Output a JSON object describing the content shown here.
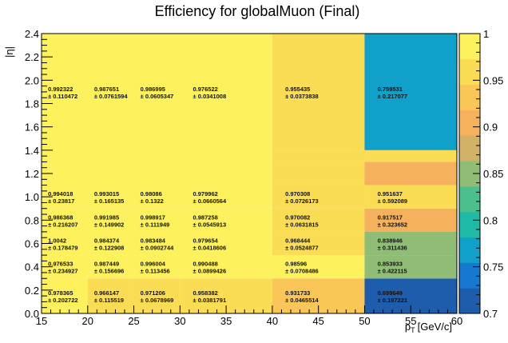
{
  "chart_data": {
    "type": "heatmap",
    "title": "Efficiency for globalMuon (Final)",
    "xlabel_main": "p",
    "xlabel_sub": "T",
    "xlabel_unit": "[GeV/c]",
    "ylabel": "|η|",
    "x_edges": [
      15,
      20,
      25,
      30,
      40,
      50,
      60
    ],
    "y_edges": [
      0.0,
      0.3,
      0.5,
      0.7,
      0.9,
      1.1,
      1.3,
      1.4,
      2.4
    ],
    "xlim": [
      15,
      60
    ],
    "ylim": [
      0.0,
      2.4
    ],
    "zlim": [
      0.7,
      1.0
    ],
    "x_ticks": [
      "15",
      "20",
      "25",
      "30",
      "35",
      "40",
      "45",
      "50",
      "55",
      "60"
    ],
    "y_ticks": [
      "0.0",
      "0.2",
      "0.4",
      "0.6",
      "0.8",
      "1.0",
      "1.2",
      "1.4",
      "1.6",
      "1.8",
      "2.0",
      "2.2",
      "2.4"
    ],
    "z_ticks": [
      "0.7",
      "0.75",
      "0.8",
      "0.85",
      "0.9",
      "0.95",
      "1"
    ],
    "rows": [
      {
        "values": [
          0.978365,
          0.966147,
          0.971206,
          0.958382,
          0.931733,
          0.699649
        ],
        "labels": [
          "0.978365",
          "0.966147",
          "0.971206",
          "0.958382",
          "0.931733",
          "0.699649"
        ],
        "errors": [
          "± 0.202722",
          "± 0.115519",
          "± 0.0678969",
          "± 0.0381791",
          "± 0.0465514",
          "± 0.197221"
        ]
      },
      {
        "values": [
          0.976533,
          0.987449,
          0.996004,
          0.990488,
          0.98596,
          0.853933
        ],
        "labels": [
          "0.976533",
          "0.987449",
          "0.996004",
          "0.990488",
          "0.98596",
          "0.853933"
        ],
        "errors": [
          "± 0.234927",
          "± 0.156696",
          "± 0.113456",
          "± 0.0899426",
          "± 0.0708486",
          "± 0.422115"
        ]
      },
      {
        "values": [
          1.0042,
          0.984374,
          0.983484,
          0.979654,
          0.968444,
          0.838946
        ],
        "labels": [
          "1.0042",
          "0.984374",
          "0.983484",
          "0.979654",
          "0.968444",
          "0.838946"
        ],
        "errors": [
          "± 0.178479",
          "± 0.122908",
          "± 0.0902744",
          "± 0.0418606",
          "± 0.0524877",
          "± 0.311436"
        ]
      },
      {
        "values": [
          0.986368,
          0.991985,
          0.998917,
          0.987258,
          0.970082,
          0.917517
        ],
        "labels": [
          "0.986368",
          "0.991985",
          "0.998917",
          "0.987258",
          "0.970082",
          "0.917517"
        ],
        "errors": [
          "± 0.216207",
          "± 0.149902",
          "± 0.111949",
          "± 0.0545913",
          "± 0.0631815",
          "± 0.323652"
        ]
      },
      {
        "values": [
          0.994018,
          0.993015,
          0.98086,
          0.979962,
          0.970308,
          0.951637
        ],
        "labels": [
          "0.994018",
          "0.993015",
          "0.98086",
          "0.979962",
          "0.970308",
          "0.951637"
        ],
        "errors": [
          "± 0.23817",
          "± 0.165135",
          "± 0.1322",
          "± 0.0660564",
          "± 0.0726173",
          "± 0.592089"
        ]
      },
      {
        "values": [
          0.986368,
          0.991985,
          0.998917,
          0.987258,
          0.970082,
          0.917517
        ],
        "labels": [
          "",
          "",
          "",
          "",
          "",
          ""
        ],
        "errors": [
          "",
          "",
          "",
          "",
          "",
          ""
        ]
      },
      {
        "values": [
          0.994018,
          0.993015,
          0.98086,
          0.979962,
          0.970308,
          0.951637
        ],
        "labels": [
          "",
          "",
          "",
          "",
          "",
          ""
        ],
        "errors": [
          "",
          "",
          "",
          "",
          "",
          ""
        ]
      },
      {
        "values": [
          0.992322,
          0.987651,
          0.986995,
          0.976522,
          0.955435,
          0.759531
        ],
        "labels": [
          "0.992322",
          "0.987651",
          "0.986995",
          "0.976522",
          "0.955435",
          "0.759531"
        ],
        "errors": [
          "± 0.110472",
          "± 0.0761594",
          "± 0.0605347",
          "± 0.0341008",
          "± 0.0373838",
          "± 0.217077"
        ]
      }
    ],
    "palette": [
      "#1d5dab",
      "#1778d0",
      "#10a0c9",
      "#20b9a5",
      "#4bbf8d",
      "#90bd75",
      "#d1b266",
      "#f5b15c",
      "#f9c657",
      "#fbdc55",
      "#fdf15d"
    ]
  }
}
